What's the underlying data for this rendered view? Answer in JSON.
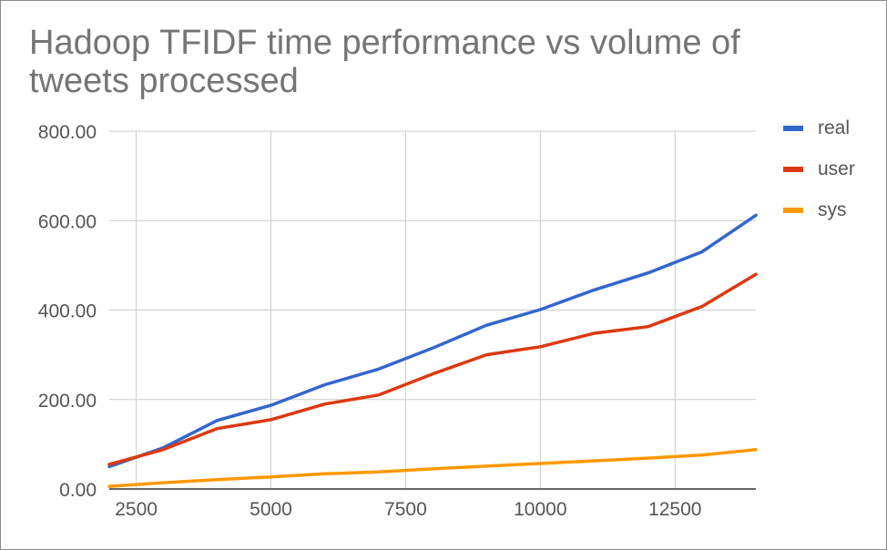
{
  "chart_data": {
    "type": "line",
    "title": "Hadoop TFIDF time performance vs volume of tweets processed",
    "xlabel": "",
    "ylabel": "",
    "x": [
      2000,
      3000,
      4000,
      5000,
      6000,
      7000,
      8000,
      9000,
      10000,
      11000,
      12000,
      13000,
      14000
    ],
    "xlim": [
      2000,
      14000
    ],
    "xticks": [
      2500,
      5000,
      7500,
      10000,
      12500
    ],
    "ylim": [
      0,
      800
    ],
    "yticks": [
      0,
      200,
      400,
      600,
      800
    ],
    "ytick_labels": [
      "0.00",
      "200.00",
      "400.00",
      "600.00",
      "800.00"
    ],
    "grid": true,
    "legend_position": "right",
    "series": [
      {
        "name": "real",
        "color": "#3366cc",
        "values": [
          50,
          92,
          153,
          187,
          233,
          268,
          315,
          366,
          401,
          445,
          483,
          530,
          612
        ]
      },
      {
        "name": "user",
        "color": "#dc3912",
        "values": [
          55,
          88,
          135,
          155,
          190,
          210,
          257,
          300,
          318,
          348,
          363,
          408,
          480
        ]
      },
      {
        "name": "sys",
        "color": "#ff9900",
        "values": [
          6,
          14,
          21,
          27,
          34,
          38,
          45,
          51,
          57,
          63,
          69,
          76,
          88
        ]
      }
    ]
  }
}
